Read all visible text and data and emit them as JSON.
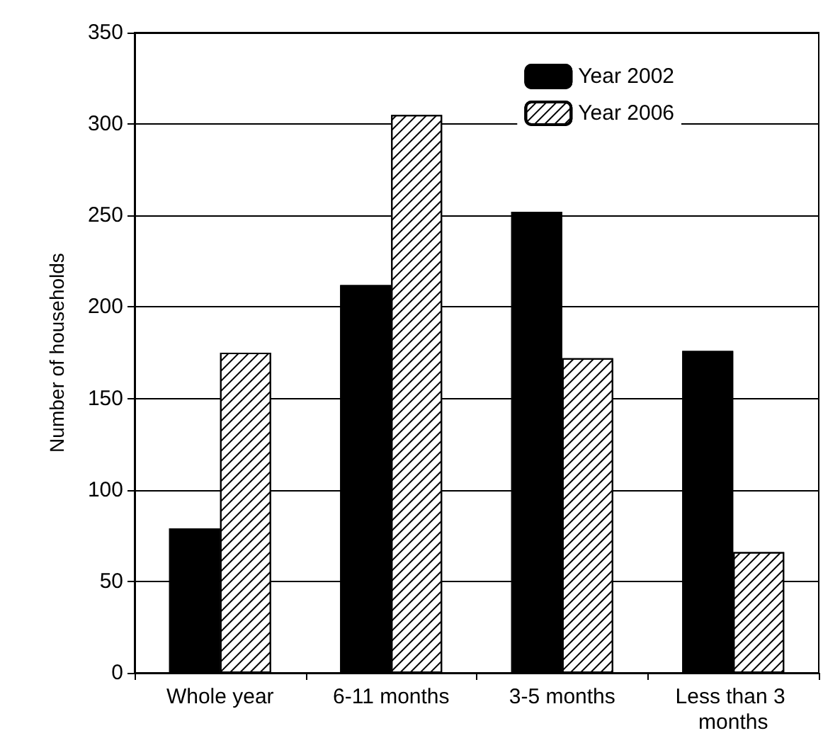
{
  "chart_data": {
    "type": "bar",
    "ylabel": "Number of households",
    "categories": [
      "Whole year",
      "6-11 months",
      "3-5 months",
      "Less than 3 months"
    ],
    "series": [
      {
        "name": "Year 2002",
        "color": "#000000",
        "values": [
          79,
          212,
          252,
          176
        ]
      },
      {
        "name": "Year 2006",
        "color": "#ffffff",
        "values": [
          175,
          305,
          172,
          66
        ]
      }
    ],
    "ylim": [
      0,
      350
    ],
    "yticks": [
      0,
      50,
      100,
      150,
      200,
      250,
      300,
      350
    ],
    "grid": "y",
    "legend": "top right"
  }
}
